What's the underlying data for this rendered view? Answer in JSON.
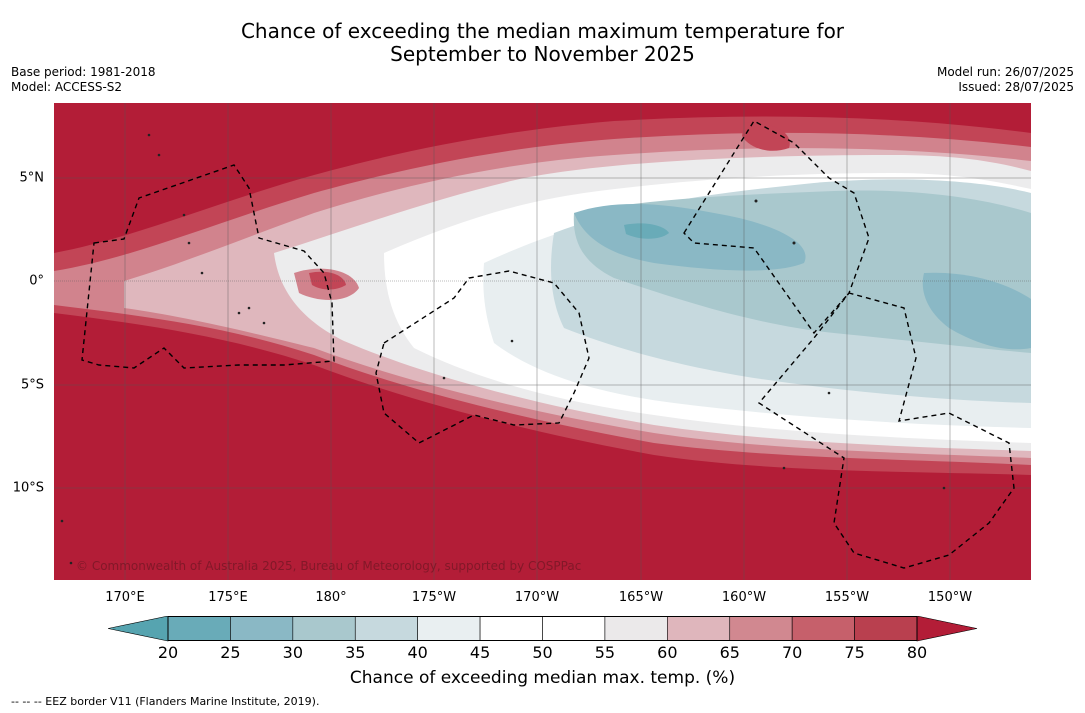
{
  "title": {
    "line1": "Chance of exceeding the median maximum temperature for",
    "line2": "September to November 2025"
  },
  "meta_left": {
    "base_period": "Base period: 1981-2018",
    "model": "Model: ACCESS-S2"
  },
  "meta_right": {
    "model_run": "Model run: 26/07/2025",
    "issued": "Issued: 28/07/2025"
  },
  "map": {
    "longitude_labels": [
      "170°E",
      "175°E",
      "180°",
      "175°W",
      "170°W",
      "165°W",
      "160°W",
      "155°W",
      "150°W"
    ],
    "latitude_labels": [
      "5°N",
      "0°",
      "5°S",
      "10°S"
    ],
    "copyright": "© Commonwealth of Australia 2025, Bureau of Meteorology, supported by COSPPac"
  },
  "colorbar": {
    "ticks": [
      "20",
      "25",
      "30",
      "35",
      "40",
      "45",
      "50",
      "55",
      "60",
      "65",
      "70",
      "75",
      "80"
    ],
    "colors": [
      "#69abb8",
      "#8ab8c5",
      "#a9c8cd",
      "#c6d9de",
      "#e9eff1",
      "#ffffff",
      "#ffffff",
      "#ebe9ea",
      "#dfb6bc",
      "#d18890",
      "#c6606b",
      "#b9404f"
    ],
    "under_color": "#56a4b0",
    "over_color": "#b31d37",
    "label": "Chance of exceeding median max. temp. (%)"
  },
  "footer": "--  --  -- EEZ border V11 (Flanders Marine Institute, 2019)."
}
